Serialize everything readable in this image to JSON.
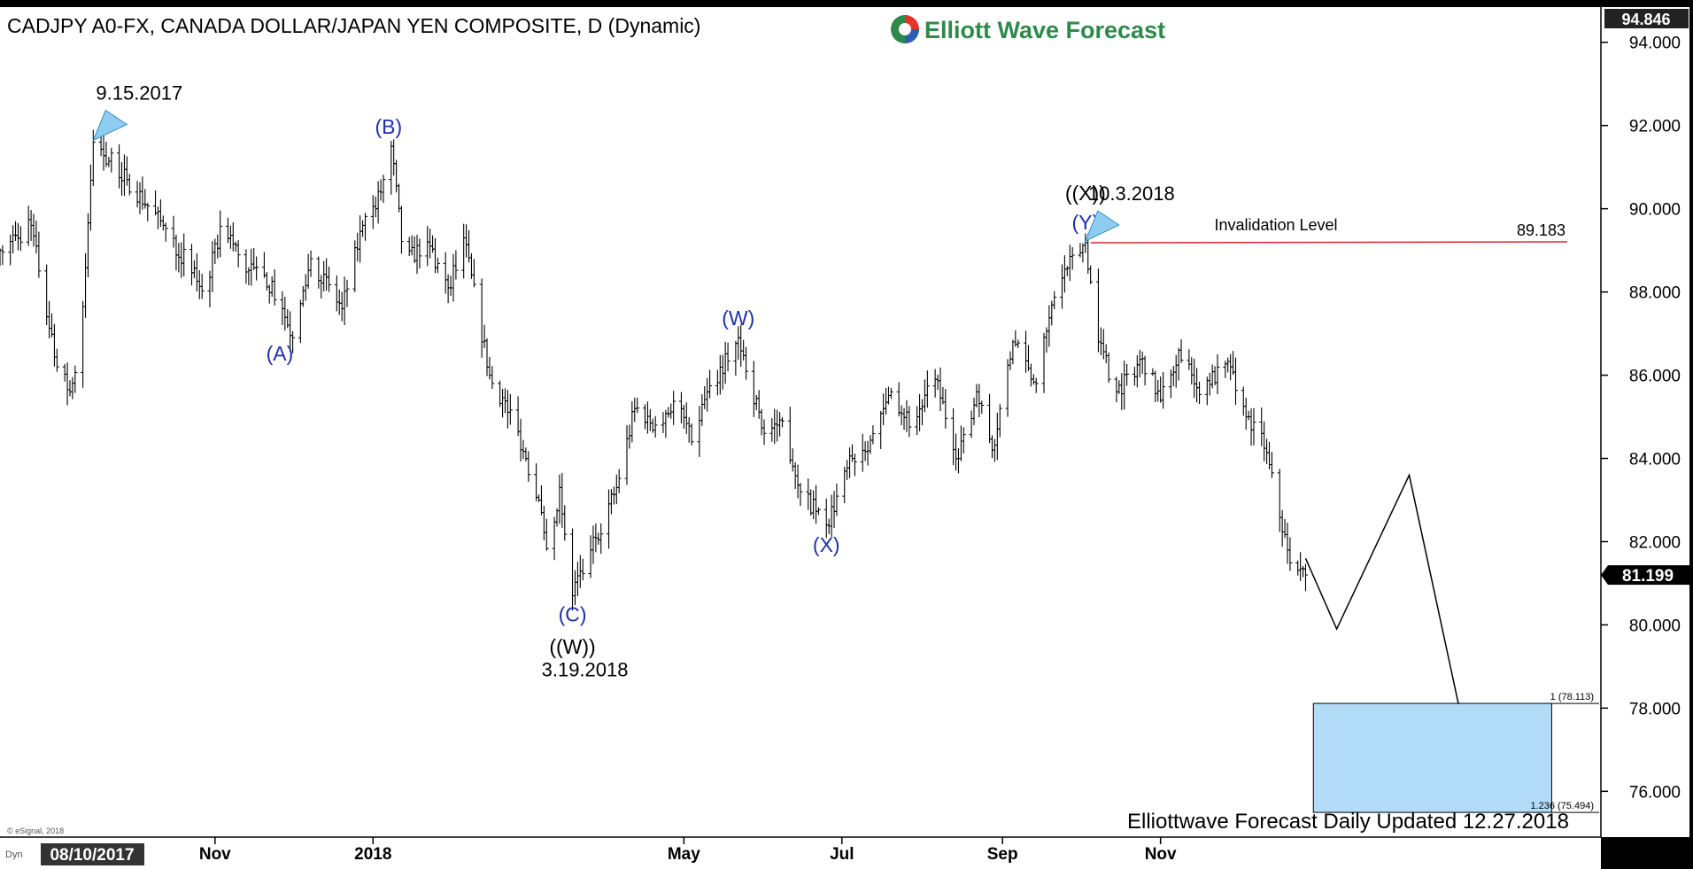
{
  "header": {
    "title": "CADJPY A0-FX, CANADA DOLLAR/JAPAN YEN COMPOSITE, D (Dynamic)",
    "brand": "Elliott Wave Forecast"
  },
  "footer": {
    "update_note": "Elliottwave Forecast Daily Updated 12.27.2018",
    "copyright": "© eSignal, 2018",
    "dyn_label": "Dyn",
    "start_date": "08/10/2017"
  },
  "colors": {
    "wave_label": "#1f2fa8",
    "invalidation_line": "#d9262e",
    "target_box": "#b3dcf8",
    "marker": "#8fcdf0"
  },
  "chart_data": {
    "type": "bar",
    "symbol": "CADJPY",
    "ylim": [
      74.9,
      94.846
    ],
    "y_ticks": [
      "94.000",
      "92.000",
      "90.000",
      "88.000",
      "86.000",
      "84.000",
      "82.000",
      "80.000",
      "78.000",
      "76.000"
    ],
    "y_tick_values": [
      94,
      92,
      90,
      88,
      86,
      84,
      82,
      80,
      78,
      76
    ],
    "x_ticks": [
      "Nov",
      "2018",
      "May",
      "Jul",
      "Sep",
      "Nov"
    ],
    "x_tick_dates": [
      "2017-11-01",
      "2018-01-01",
      "2018-05-01",
      "2018-07-01",
      "2018-09-01",
      "2018-11-01"
    ],
    "x_range": [
      "2017-08-10",
      "2019-04-20"
    ],
    "top_value": "94.846",
    "last_price": "81.199",
    "price_path": [
      [
        "2017-08-10",
        89.0
      ],
      [
        "2017-08-22",
        89.6
      ],
      [
        "2017-09-01",
        86.2
      ],
      [
        "2017-09-06",
        85.6
      ],
      [
        "2017-09-10",
        86.6
      ],
      [
        "2017-09-15",
        91.6
      ],
      [
        "2017-09-28",
        90.7
      ],
      [
        "2017-10-12",
        89.6
      ],
      [
        "2017-10-28",
        88.0
      ],
      [
        "2017-11-04",
        89.7
      ],
      [
        "2017-11-12",
        88.6
      ],
      [
        "2017-11-20",
        88.4
      ],
      [
        "2017-11-27",
        87.6
      ],
      [
        "2017-12-01",
        86.9
      ],
      [
        "2017-12-08",
        88.8
      ],
      [
        "2017-12-20",
        87.6
      ],
      [
        "2017-12-28",
        89.6
      ],
      [
        "2018-01-02",
        90.0
      ],
      [
        "2018-01-08",
        91.5
      ],
      [
        "2018-01-13",
        88.7
      ],
      [
        "2018-01-22",
        89.2
      ],
      [
        "2018-01-30",
        88.1
      ],
      [
        "2018-02-05",
        89.3
      ],
      [
        "2018-02-15",
        86.0
      ],
      [
        "2018-02-25",
        84.8
      ],
      [
        "2018-03-06",
        83.0
      ],
      [
        "2018-03-10",
        81.2
      ],
      [
        "2018-03-14",
        83.3
      ],
      [
        "2018-03-19",
        80.7
      ],
      [
        "2018-03-26",
        81.8
      ],
      [
        "2018-04-05",
        83.3
      ],
      [
        "2018-04-12",
        85.2
      ],
      [
        "2018-04-20",
        84.8
      ],
      [
        "2018-04-28",
        85.4
      ],
      [
        "2018-05-04",
        84.4
      ],
      [
        "2018-05-10",
        85.6
      ],
      [
        "2018-05-22",
        86.9
      ],
      [
        "2018-06-01",
        84.6
      ],
      [
        "2018-06-08",
        84.9
      ],
      [
        "2018-06-15",
        83.2
      ],
      [
        "2018-06-25",
        82.4
      ],
      [
        "2018-07-05",
        84.0
      ],
      [
        "2018-07-14",
        84.6
      ],
      [
        "2018-07-20",
        85.6
      ],
      [
        "2018-07-28",
        84.8
      ],
      [
        "2018-08-06",
        85.9
      ],
      [
        "2018-08-15",
        84.0
      ],
      [
        "2018-08-22",
        85.6
      ],
      [
        "2018-08-28",
        84.2
      ],
      [
        "2018-09-05",
        86.8
      ],
      [
        "2018-09-14",
        85.8
      ],
      [
        "2018-09-22",
        88.2
      ],
      [
        "2018-10-03",
        89.183
      ],
      [
        "2018-10-08",
        86.8
      ],
      [
        "2018-10-15",
        85.6
      ],
      [
        "2018-10-25",
        86.4
      ],
      [
        "2018-11-01",
        85.4
      ],
      [
        "2018-11-08",
        86.6
      ],
      [
        "2018-11-15",
        85.7
      ],
      [
        "2018-11-28",
        86.2
      ],
      [
        "2018-12-04",
        85.0
      ],
      [
        "2018-12-10",
        84.6
      ],
      [
        "2018-12-15",
        83.2
      ],
      [
        "2018-12-20",
        81.8
      ],
      [
        "2018-12-27",
        81.199
      ]
    ],
    "projection": [
      [
        "2018-12-27",
        81.6
      ],
      [
        "2019-01-08",
        79.9
      ],
      [
        "2019-02-05",
        83.6
      ],
      [
        "2019-02-24",
        78.1
      ]
    ],
    "invalidation": {
      "label": "Invalidation Level",
      "value": "89.183",
      "from": "2018-10-03"
    },
    "target_zone": {
      "top": 78.113,
      "bottom": 75.494,
      "from": "2018-12-30",
      "to": "2019-04-01",
      "top_label": "1 (78.113)",
      "bottom_label": "1.236 (75.494)"
    },
    "wave_labels": [
      {
        "text": "(A)",
        "date": "2017-11-26",
        "value": 86.95,
        "pos": "below",
        "color": "blue"
      },
      {
        "text": "(B)",
        "date": "2018-01-07",
        "value": 91.55,
        "pos": "above",
        "color": "blue"
      },
      {
        "text": "(C)",
        "date": "2018-03-19",
        "value": 80.68,
        "pos": "below",
        "color": "blue"
      },
      {
        "text": "((W))",
        "date": "2018-03-19",
        "value": 79.9,
        "pos": "below",
        "color": "black"
      },
      {
        "text": "(W)",
        "date": "2018-05-22",
        "value": 86.95,
        "pos": "above",
        "color": "blue"
      },
      {
        "text": "(X)",
        "date": "2018-06-25",
        "value": 82.35,
        "pos": "below",
        "color": "blue"
      },
      {
        "text": "(Y)",
        "date": "2018-10-03",
        "value": 89.25,
        "pos": "above",
        "color": "blue"
      },
      {
        "text": "((X))",
        "date": "2018-10-03",
        "value": 89.95,
        "pos": "above",
        "color": "black"
      }
    ],
    "date_annotations": [
      {
        "text": "9.15.2017",
        "date": "2017-09-15",
        "value": 91.6,
        "marker": true
      },
      {
        "text": "3.19.2018",
        "date": "2018-03-19",
        "value": 80.68,
        "marker": false
      },
      {
        "text": "10.3.2018",
        "date": "2018-10-03",
        "value": 89.183,
        "marker": true
      }
    ]
  }
}
